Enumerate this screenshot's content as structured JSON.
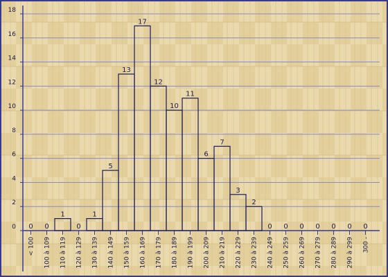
{
  "chart_data": {
    "type": "bar",
    "title": "",
    "xlabel": "",
    "ylabel": "",
    "categories": [
      "< 100",
      "100 à 109",
      "110 à 119",
      "120 à 129",
      "130 à 139",
      "140 à 149",
      "150 à 159",
      "160 à 169",
      "170 à 179",
      "180 à 189",
      "190 à 199",
      "200 à 209",
      "210 à 219",
      "220 à 229",
      "230 à 239",
      "240 à 249",
      "250 à 259",
      "260 à 269",
      "270 à 279",
      "280 à 289",
      "290 à 299",
      "300 -"
    ],
    "values": [
      0,
      0,
      1,
      0,
      1,
      5,
      13,
      17,
      12,
      10,
      11,
      6,
      7,
      3,
      2,
      0,
      0,
      0,
      0,
      0,
      0,
      0
    ],
    "ylim": [
      0,
      18
    ],
    "yticks": [
      0,
      2,
      4,
      6,
      8,
      10,
      12,
      14,
      16,
      18
    ],
    "grid": true,
    "legend": "none",
    "colors": {
      "background": "#ead9ac",
      "grain": "#dcc68e",
      "frame": "#3a3a8a",
      "grid": "#8a8ac8",
      "bar_stroke": "#1a1a5a",
      "text": "#1a1a4a"
    }
  }
}
